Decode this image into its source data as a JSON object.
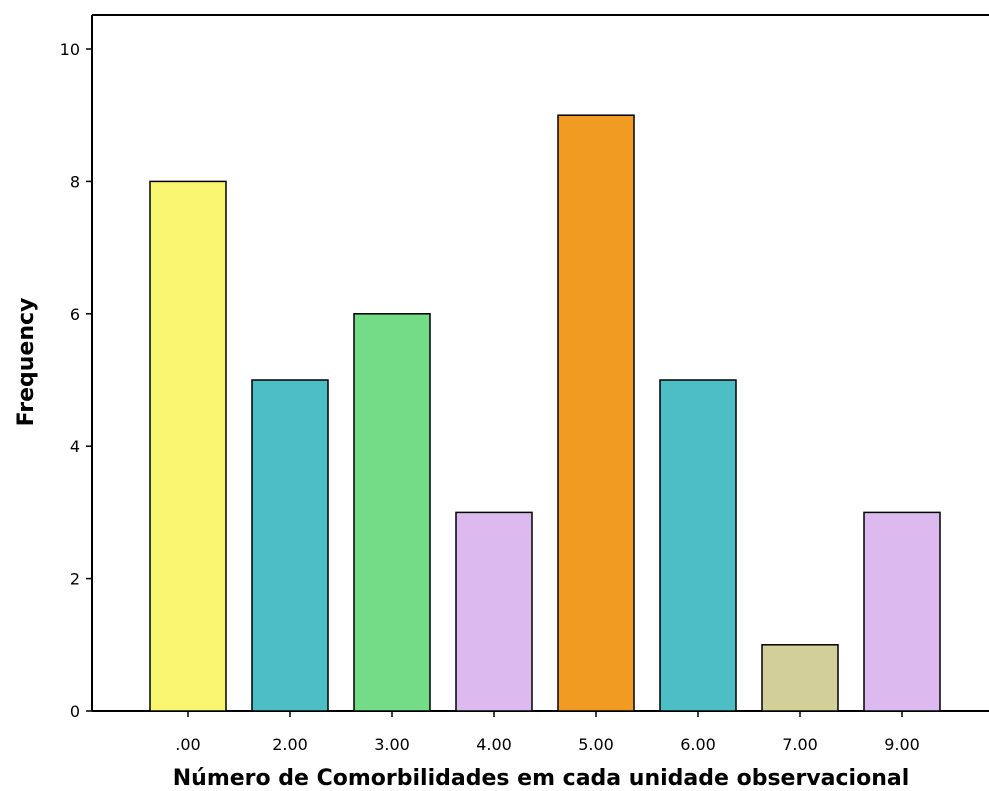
{
  "chart_data": {
    "type": "bar",
    "categories": [
      ".00",
      "2.00",
      "3.00",
      "4.00",
      "5.00",
      "6.00",
      "7.00",
      "9.00"
    ],
    "values": [
      8,
      5,
      6,
      3,
      9,
      5,
      1,
      3
    ],
    "colors": [
      "#f8f56f",
      "#4dbec5",
      "#74db87",
      "#dcbaf0",
      "#f19b23",
      "#4dbec5",
      "#d3cf98",
      "#dcbaf0"
    ],
    "xlabel": "Número de Comorbilidades em cada unidade observacional",
    "ylabel": "Frequency",
    "ylim": [
      0,
      10
    ],
    "yticks": [
      0,
      2,
      4,
      6,
      8,
      10
    ],
    "grid": false
  }
}
